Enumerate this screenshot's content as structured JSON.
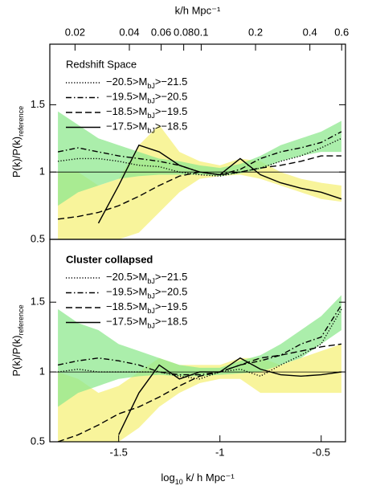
{
  "chart_data": [
    {
      "type": "line",
      "legend_title": "Redshift Space",
      "ylabel": "P(k)/P(k)reference",
      "x2label": "k/h Mpc⁻¹",
      "x2lim": [
        0.0145,
        0.63
      ],
      "x2ticks": [
        0.02,
        0.04,
        0.06,
        0.08,
        0.1,
        0.2,
        0.4,
        0.6
      ],
      "x2log": true,
      "xlim": [
        -1.84,
        -0.38
      ],
      "ylim": [
        0.5,
        1.95
      ],
      "yticks": [
        0.5,
        1,
        1.5
      ],
      "hline": 1,
      "x": [
        -1.8,
        -1.7,
        -1.6,
        -1.5,
        -1.4,
        -1.3,
        -1.2,
        -1.1,
        -1.0,
        -0.9,
        -0.8,
        -0.7,
        -0.6,
        -0.5,
        -0.4
      ],
      "bands": [
        {
          "color": "#f5f07a",
          "lower": [
            0.5,
            0.5,
            0.5,
            0.5,
            0.55,
            0.7,
            0.85,
            0.95,
            0.97,
            0.98,
            0.95,
            0.9,
            0.85,
            0.8,
            0.78
          ],
          "upper": [
            1.0,
            1.0,
            0.9,
            0.95,
            1.2,
            1.35,
            1.15,
            1.08,
            1.05,
            1.1,
            1.08,
            1.0,
            0.95,
            0.92,
            0.9
          ]
        },
        {
          "color": "#8fe88f",
          "lower": [
            0.75,
            0.85,
            0.9,
            0.95,
            0.97,
            0.98,
            0.98,
            0.98,
            0.97,
            0.99,
            1.02,
            1.08,
            1.12,
            1.15,
            1.15
          ],
          "upper": [
            1.45,
            1.35,
            1.25,
            1.2,
            1.15,
            1.1,
            1.08,
            1.05,
            1.03,
            1.06,
            1.12,
            1.2,
            1.25,
            1.3,
            1.38
          ]
        }
      ],
      "series": [
        {
          "name": "−20.5>MbJ>−21.5",
          "color": "#000000",
          "linestyle": "dotted",
          "values": [
            1.08,
            1.1,
            1.1,
            1.08,
            1.05,
            1.04,
            1.0,
            0.98,
            0.97,
            1.0,
            1.03,
            1.08,
            1.12,
            1.18,
            1.25
          ]
        },
        {
          "name": "−19.5>MbJ>−20.5",
          "color": "#000000",
          "linestyle": "dashdot",
          "values": [
            1.15,
            1.18,
            1.15,
            1.12,
            1.1,
            1.08,
            1.05,
            1.0,
            0.98,
            1.02,
            1.1,
            1.15,
            1.18,
            1.22,
            1.3
          ]
        },
        {
          "name": "−18.5>MbJ>−19.5",
          "color": "#000000",
          "linestyle": "dashed",
          "values": [
            0.65,
            0.67,
            0.7,
            0.75,
            0.82,
            0.9,
            0.97,
            1.0,
            0.98,
            1.0,
            1.03,
            1.05,
            1.08,
            1.12,
            1.12
          ]
        },
        {
          "name": "−17.5>MbJ>−18.5",
          "color": "#000000",
          "linestyle": "solid",
          "values": [
            null,
            null,
            0.62,
            0.9,
            1.2,
            1.15,
            1.05,
            1.0,
            0.98,
            1.1,
            0.98,
            0.92,
            0.88,
            0.85,
            0.8
          ]
        }
      ]
    },
    {
      "type": "line",
      "legend_title": "Cluster collapsed",
      "ylabel": "P(k)/P(k)reference",
      "xlabel": "log10 k/ h Mpc⁻¹",
      "xlim": [
        -1.84,
        -0.38
      ],
      "xticks": [
        -1.5,
        -1,
        -0.5
      ],
      "ylim": [
        0.5,
        1.95
      ],
      "yticks": [
        0.5,
        1,
        1.5
      ],
      "hline": 1,
      "x": [
        -1.8,
        -1.7,
        -1.6,
        -1.5,
        -1.4,
        -1.3,
        -1.2,
        -1.1,
        -1.0,
        -0.9,
        -0.8,
        -0.7,
        -0.6,
        -0.5,
        -0.4
      ],
      "bands": [
        {
          "color": "#f5f07a",
          "lower": [
            0.5,
            0.5,
            0.5,
            0.5,
            0.6,
            0.75,
            0.85,
            0.92,
            0.95,
            0.95,
            0.85,
            0.85,
            0.85,
            0.85,
            0.85
          ],
          "upper": [
            1.0,
            0.95,
            0.85,
            0.9,
            1.0,
            1.1,
            1.05,
            1.05,
            1.05,
            1.1,
            1.1,
            1.05,
            1.1,
            1.15,
            1.2
          ]
        },
        {
          "color": "#8fe88f",
          "lower": [
            0.75,
            0.85,
            0.9,
            0.95,
            0.97,
            0.98,
            0.97,
            0.97,
            0.98,
            0.99,
            1.0,
            1.05,
            1.1,
            1.2,
            1.3
          ],
          "upper": [
            1.45,
            1.35,
            1.3,
            1.2,
            1.15,
            1.1,
            1.05,
            1.03,
            1.03,
            1.08,
            1.12,
            1.2,
            1.3,
            1.4,
            1.55
          ]
        }
      ],
      "series": [
        {
          "name": "−20.5>MbJ>−21.5",
          "color": "#000000",
          "linestyle": "dotted",
          "values": [
            1.0,
            1.02,
            1.0,
            1.0,
            1.0,
            1.0,
            0.97,
            0.95,
            1.0,
            1.02,
            0.97,
            1.05,
            1.12,
            1.2,
            1.45
          ]
        },
        {
          "name": "−19.5>MbJ>−20.5",
          "color": "#000000",
          "linestyle": "dashdot",
          "values": [
            1.05,
            1.08,
            1.1,
            1.08,
            1.05,
            1.0,
            0.98,
            0.98,
            1.0,
            1.05,
            1.08,
            1.12,
            1.2,
            1.25,
            1.48
          ]
        },
        {
          "name": "−18.5>MbJ>−19.5",
          "color": "#000000",
          "linestyle": "dashed",
          "values": [
            0.5,
            0.55,
            0.62,
            0.7,
            0.75,
            0.82,
            0.9,
            0.97,
            1.0,
            1.05,
            1.1,
            1.12,
            1.15,
            1.18,
            1.2
          ]
        },
        {
          "name": "−17.5>MbJ>−18.5",
          "color": "#000000",
          "linestyle": "solid",
          "values": [
            null,
            null,
            null,
            0.55,
            0.85,
            1.05,
            0.95,
            1.0,
            1.0,
            1.1,
            1.02,
            0.98,
            0.97,
            0.98,
            1.0
          ]
        }
      ]
    }
  ]
}
